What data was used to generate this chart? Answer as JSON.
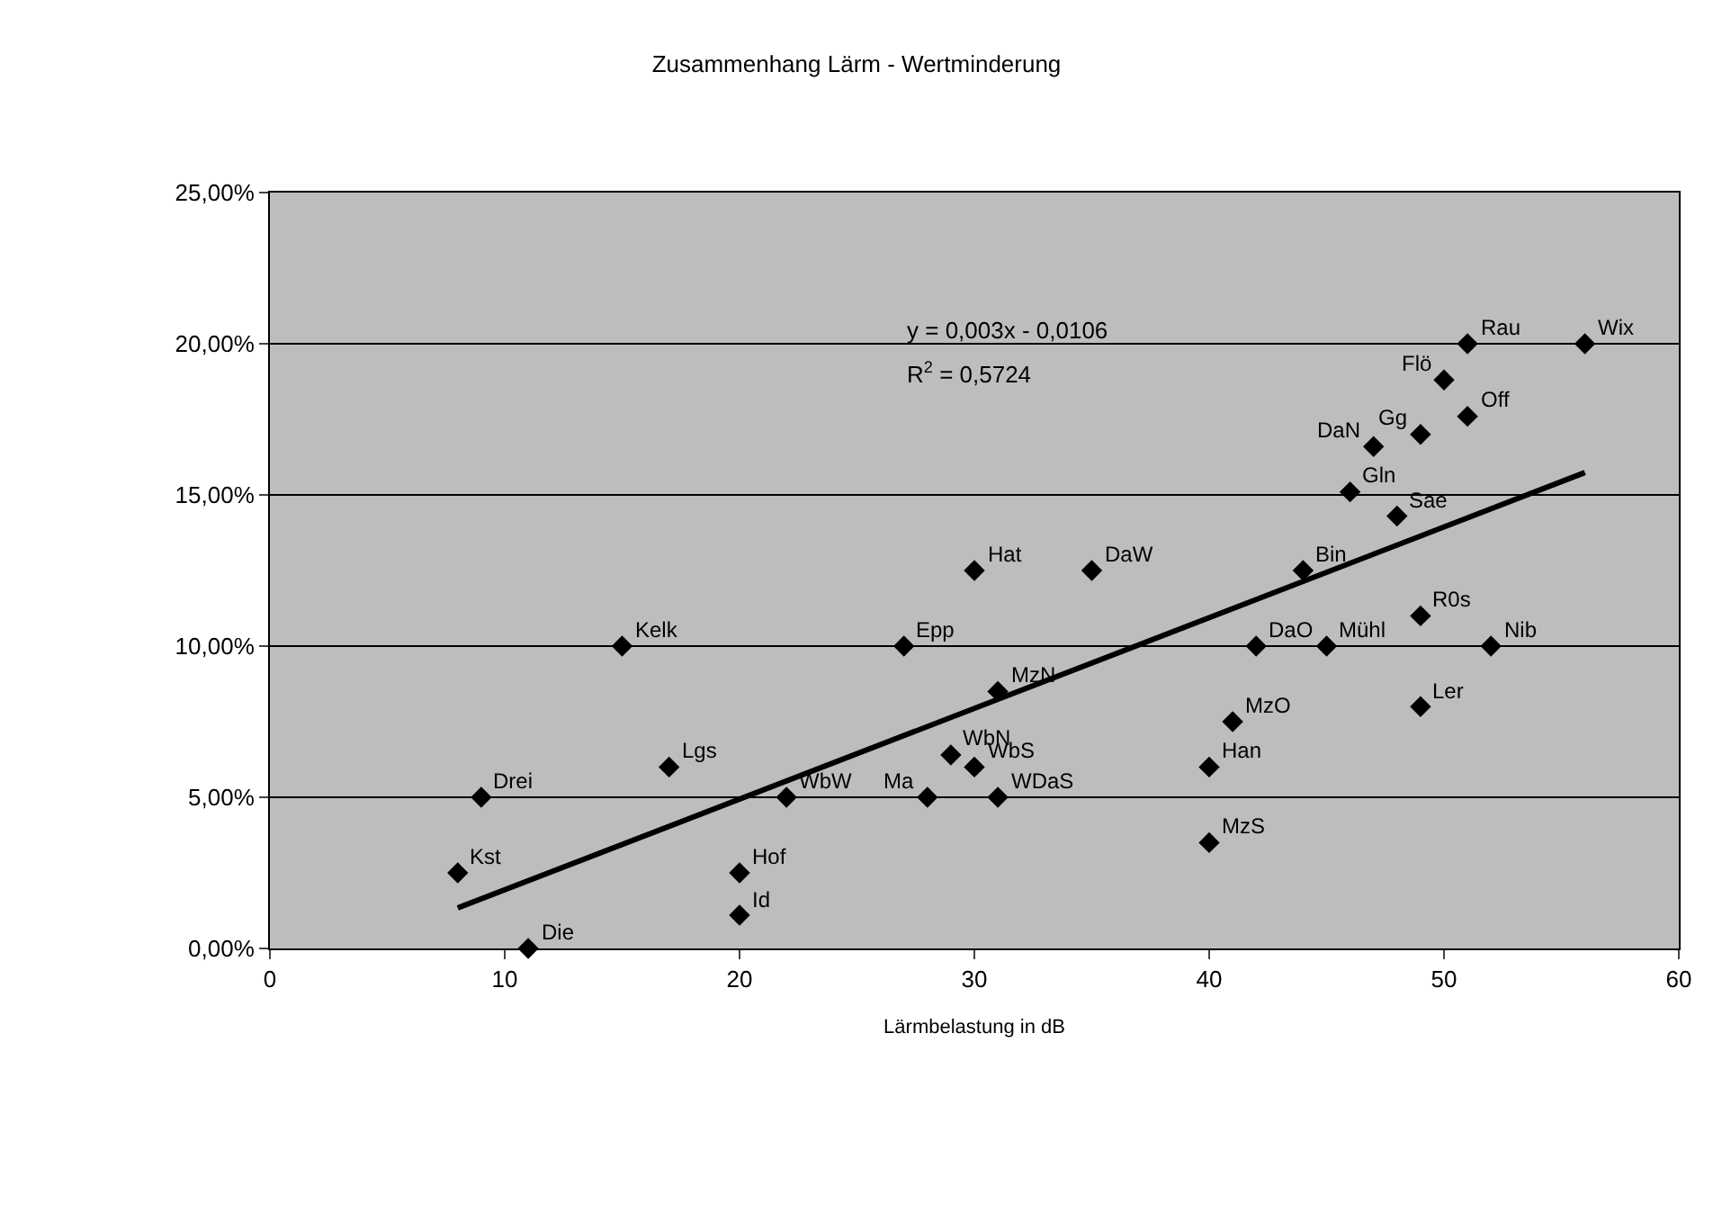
{
  "chart_data": {
    "type": "scatter",
    "title": "Zusammenhang Lärm - Wertminderung",
    "xlabel": "Lärmbelastung in dB",
    "xlim": [
      0,
      60
    ],
    "xticks": [
      0,
      10,
      20,
      30,
      40,
      50,
      60
    ],
    "ylim": [
      0,
      25
    ],
    "yticks": [
      {
        "value": 0,
        "label": "0,00%"
      },
      {
        "value": 5,
        "label": "5,00%"
      },
      {
        "value": 10,
        "label": "10,00%"
      },
      {
        "value": 15,
        "label": "15,00%"
      },
      {
        "value": 20,
        "label": "20,00%"
      },
      {
        "value": 25,
        "label": "25,00%"
      }
    ],
    "grid": "y",
    "legend": false,
    "marker": "diamond",
    "series": [
      {
        "color": "#000000",
        "x": [
          51,
          56,
          50,
          51,
          47,
          49,
          46,
          48,
          30,
          35,
          44,
          49,
          42,
          45,
          52,
          15,
          27,
          17,
          9,
          22,
          28,
          31,
          30,
          29,
          31,
          8,
          20,
          20,
          11,
          41,
          40,
          40,
          49
        ],
        "values": [
          20,
          20,
          18.8,
          17.6,
          16.6,
          17,
          15.1,
          14.3,
          12.5,
          12.5,
          12.5,
          11,
          10,
          10,
          10,
          10,
          10,
          6,
          5,
          5,
          5,
          5,
          6,
          6.4,
          8.5,
          2.5,
          2.5,
          1.1,
          0,
          7.5,
          6,
          3.5,
          8
        ]
      },
      {
        "type": "line",
        "color": "#000000",
        "marker": "none",
        "x": [
          8,
          56
        ],
        "values": [
          1.34,
          15.74
        ]
      }
    ],
    "annotations": [
      {
        "text": "Rau",
        "x": 51,
        "y": 20
      },
      {
        "text": "Wix",
        "x": 56,
        "y": 20
      },
      {
        "text": "Flö",
        "x": 50,
        "y": 18.8
      },
      {
        "text": "Off",
        "x": 51,
        "y": 17.6
      },
      {
        "text": "DaN",
        "x": 47,
        "y": 16.6
      },
      {
        "text": "Gg",
        "x": 49,
        "y": 17
      },
      {
        "text": "Gln",
        "x": 46,
        "y": 15.1
      },
      {
        "text": "Sae",
        "x": 48,
        "y": 14.3
      },
      {
        "text": "Hat",
        "x": 30,
        "y": 12.5
      },
      {
        "text": "DaW",
        "x": 35,
        "y": 12.5
      },
      {
        "text": "Bin",
        "x": 44,
        "y": 12.5
      },
      {
        "text": "R0s",
        "x": 49,
        "y": 11
      },
      {
        "text": "DaO",
        "x": 42,
        "y": 10
      },
      {
        "text": "Mühl",
        "x": 45,
        "y": 10
      },
      {
        "text": "Nib",
        "x": 52,
        "y": 10
      },
      {
        "text": "Kelk",
        "x": 15,
        "y": 10
      },
      {
        "text": "Epp",
        "x": 27,
        "y": 10
      },
      {
        "text": "Lgs",
        "x": 17,
        "y": 6
      },
      {
        "text": "Drei",
        "x": 9,
        "y": 5
      },
      {
        "text": "WbW",
        "x": 22,
        "y": 5
      },
      {
        "text": "Ma",
        "x": 28,
        "y": 5
      },
      {
        "text": "WDaS",
        "x": 31,
        "y": 5
      },
      {
        "text": "WbS",
        "x": 30,
        "y": 6
      },
      {
        "text": "WbN",
        "x": 29,
        "y": 6.4
      },
      {
        "text": "MzN",
        "x": 31,
        "y": 8.5
      },
      {
        "text": "Kst",
        "x": 8,
        "y": 2.5
      },
      {
        "text": "Hof",
        "x": 20,
        "y": 2.5
      },
      {
        "text": "Id",
        "x": 20,
        "y": 1.1
      },
      {
        "text": "Die",
        "x": 11,
        "y": 0
      },
      {
        "text": "MzO",
        "x": 41,
        "y": 7.5
      },
      {
        "text": "Han",
        "x": 40,
        "y": 6
      },
      {
        "text": "MzS",
        "x": 40,
        "y": 3.5
      },
      {
        "text": "Ler",
        "x": 49,
        "y": 8
      },
      "y = 0,003x - 0,0106",
      "R$^{2}$ = 0,5724"
    ]
  }
}
